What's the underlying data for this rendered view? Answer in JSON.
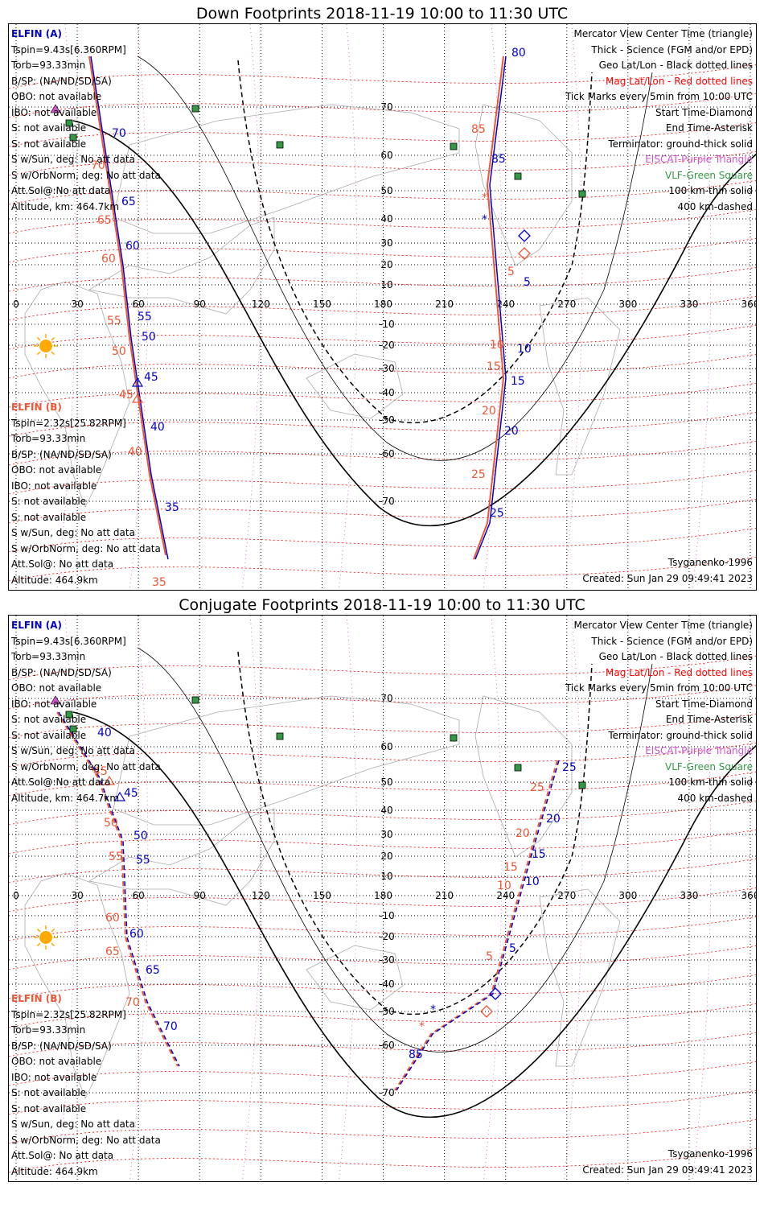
{
  "colors": {
    "elfin_a": "#0000cc",
    "elfin_b": "#ee5533",
    "mag_grid": "#ff0000",
    "eiscat": "#cc55cc",
    "vlf": "#339944",
    "geo_grid": "#000000"
  },
  "icons": [
    "sun-icon",
    "vlf-square-icon",
    "start-diamond-icon",
    "end-asterisk-icon",
    "center-triangle-icon"
  ],
  "panels": [
    {
      "title": "Down Footprints 2018-11-19 10:00 to 11:30 UTC",
      "elfin_a": {
        "header": "ELFIN (A)",
        "lines": [
          "Tspin=9.43s[6.360RPM]",
          "Torb=93.33min",
          "B/SP: (NA/ND/SD/SA)",
          "OBO: not available",
          "IBO: not available",
          "S: not available",
          "S: not available",
          "S w/Sun, deg: No att data",
          "S w/OrbNorm, deg: No att data",
          "Att.Sol@:No att data",
          "Altitude, km: 464.7km"
        ]
      },
      "elfin_b": {
        "header": "ELFIN (B)",
        "lines": [
          "Tspin=2.32s[25.82RPM]",
          "Torb=93.33min",
          "B/SP: (NA/ND/SD/SA)",
          "OBO: not available",
          "IBO: not available",
          "S: not available",
          "S: not available",
          "S w/Sun, deg: No att data",
          "S w/OrbNorm, deg: No att data",
          "Att.Sol@: No att data",
          "Altitude: 464.9km"
        ]
      },
      "legend": [
        "Mercator View Center Time (triangle)",
        "Thick - Science (FGM and/or EPD)",
        "Geo Lat/Lon - Black dotted lines",
        "Mag Lat/Lon - Red dotted lines",
        "Tick Marks every 5min from 10:00 UTC",
        "Start Time-Diamond",
        "End Time-Asterisk",
        "Terminator: ground-thick solid",
        "EISCAT-Purple Triangle",
        "VLF-Green Square",
        "100 km-thin solid",
        "400 km-dashed"
      ],
      "credits": [
        "Tsyganenko-1996",
        "Created: Sun Jan 29 09:49:41 2023"
      ],
      "ticks_a_left": [
        "70",
        "65",
        "60",
        "55",
        "50",
        "45",
        "40",
        "35"
      ],
      "ticks_b_left": [
        "70",
        "65",
        "60",
        "55",
        "50",
        "45",
        "40",
        "35"
      ],
      "ticks_a_right": [
        "80",
        "85",
        "5",
        "10",
        "15",
        "20",
        "25"
      ],
      "ticks_b_right": [
        "85",
        "5",
        "10",
        "15",
        "20",
        "25"
      ]
    },
    {
      "title": "Conjugate Footprints 2018-11-19 10:00 to 11:30 UTC",
      "elfin_a": {
        "header": "ELFIN (A)",
        "lines": [
          "Tspin=9.43s[6.360RPM]",
          "Torb=93.33min",
          "B/SP: (NA/ND/SD/SA)",
          "OBO: not available",
          "IBO: not available",
          "S: not available",
          "S: not available",
          "S w/Sun, deg: No att data",
          "S w/OrbNorm, deg: No att data",
          "Att.Sol@:No att data",
          "Altitude, km: 464.7km"
        ]
      },
      "elfin_b": {
        "header": "ELFIN (B)",
        "lines": [
          "Tspin=2.32s[25.82RPM]",
          "Torb=93.33min",
          "B/SP: (NA/ND/SD/SA)",
          "OBO: not available",
          "IBO: not available",
          "S: not available",
          "S: not available",
          "S w/Sun, deg: No att data",
          "S w/OrbNorm, deg: No att data",
          "Att.Sol@: No att data",
          "Altitude: 464.9km"
        ]
      },
      "legend": [
        "Mercator View Center Time (triangle)",
        "Thick - Science (FGM and/or EPD)",
        "Geo Lat/Lon - Black dotted lines",
        "Mag Lat/Lon - Red dotted lines",
        "Tick Marks every 5min from 10:00 UTC",
        "Start Time-Diamond",
        "End Time-Asterisk",
        "Terminator: ground-thick solid",
        "EISCAT-Purple Triangle",
        "VLF-Green Square",
        "100 km-thin solid",
        "400 km-dashed"
      ],
      "credits": [
        "Tsyganenko-1996",
        "Created: Sun Jan 29 09:49:41 2023"
      ],
      "ticks_a_left": [
        "40",
        "45",
        "50",
        "55",
        "60",
        "65",
        "70"
      ],
      "ticks_b_left": [
        "45",
        "50",
        "55",
        "60",
        "65",
        "70"
      ],
      "ticks_a_right": [
        "25",
        "20",
        "15",
        "10",
        "5",
        "85"
      ],
      "ticks_b_right": [
        "25",
        "20",
        "15",
        "10",
        "5"
      ]
    }
  ],
  "map": {
    "lon_labels": [
      "0",
      "30",
      "60",
      "90",
      "120",
      "150",
      "180",
      "210",
      "240",
      "270",
      "300",
      "330",
      "360"
    ],
    "lat_labels": [
      "70",
      "60",
      "50",
      "40",
      "30",
      "20",
      "10",
      "-10",
      "-20",
      "-30",
      "-40",
      "-50",
      "-60",
      "-70"
    ]
  }
}
